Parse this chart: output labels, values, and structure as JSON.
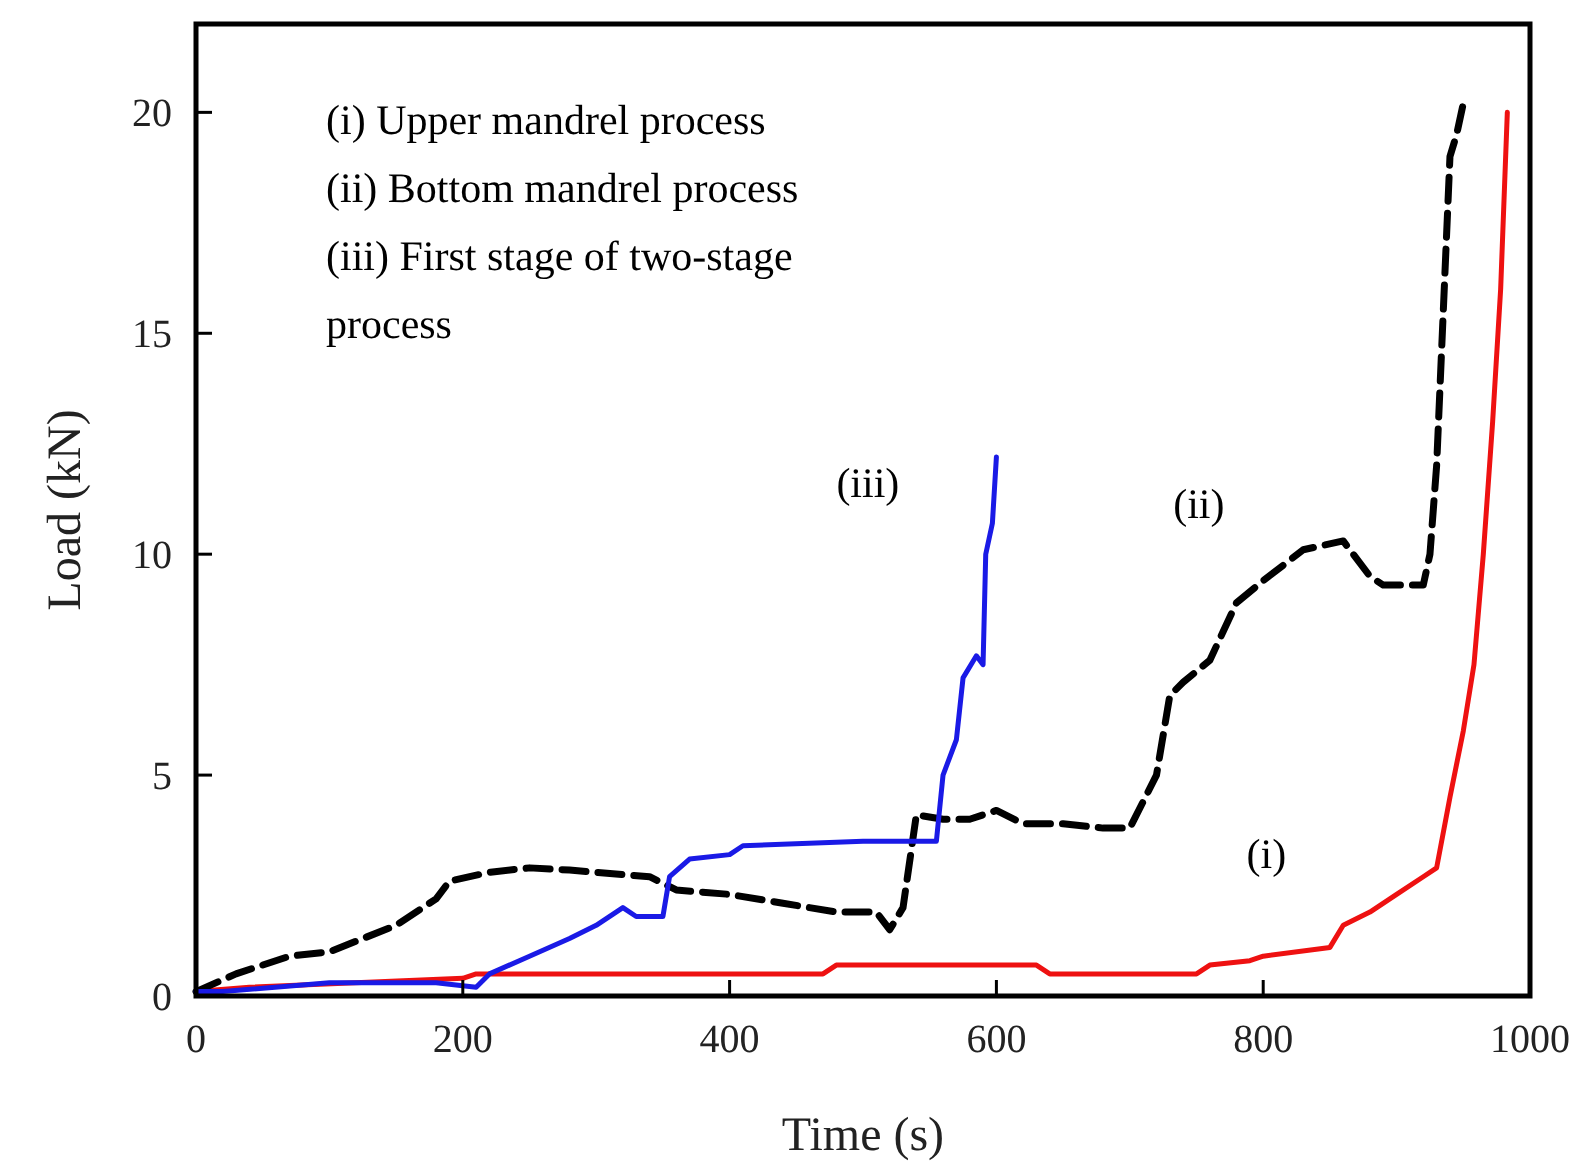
{
  "chart_data": {
    "type": "line",
    "xlabel": "Time (s)",
    "ylabel": "Load (kN)",
    "xlim": [
      0,
      1000
    ],
    "ylim": [
      0,
      22
    ],
    "xticks": [
      0,
      200,
      400,
      600,
      800,
      1000
    ],
    "yticks": [
      0,
      5,
      10,
      15,
      20
    ],
    "grid": false,
    "marker": "none",
    "annotations": [
      "(i) Upper mandrel process",
      "(ii) Bottom mandrel process",
      "(iii) First stage of two-stage process"
    ],
    "series": [
      {
        "name": "(i)",
        "color": "#ee1111",
        "line_style": "solid",
        "x": [
          0,
          40,
          200,
          210,
          470,
          480,
          630,
          640,
          750,
          760,
          790,
          800,
          850,
          860,
          880,
          900,
          920,
          930,
          940,
          950,
          958,
          965,
          972,
          978,
          983
        ],
        "values": [
          0.1,
          0.2,
          0.4,
          0.5,
          0.5,
          0.7,
          0.7,
          0.5,
          0.5,
          0.7,
          0.8,
          0.9,
          1.1,
          1.6,
          1.9,
          2.3,
          2.7,
          2.9,
          4.5,
          6,
          7.5,
          10,
          13,
          16,
          20
        ]
      },
      {
        "name": "(ii)",
        "color": "#000000",
        "line_style": "dashed",
        "x": [
          0,
          30,
          70,
          100,
          150,
          180,
          190,
          220,
          250,
          280,
          300,
          340,
          360,
          400,
          440,
          480,
          510,
          520,
          530,
          540,
          560,
          580,
          600,
          620,
          650,
          680,
          700,
          720,
          730,
          740,
          760,
          780,
          800,
          830,
          860,
          880,
          890,
          920,
          925,
          930,
          940,
          945,
          950
        ],
        "values": [
          0.1,
          0.5,
          0.9,
          1.0,
          1.6,
          2.2,
          2.6,
          2.8,
          2.9,
          2.85,
          2.8,
          2.7,
          2.4,
          2.3,
          2.1,
          1.9,
          1.9,
          1.5,
          2.0,
          4.1,
          4.0,
          4.0,
          4.2,
          3.9,
          3.9,
          3.8,
          3.8,
          5.0,
          6.8,
          7.1,
          7.6,
          8.9,
          9.4,
          10.1,
          10.3,
          9.5,
          9.3,
          9.3,
          10,
          12,
          19,
          19.5,
          20.2
        ]
      },
      {
        "name": "(iii)",
        "color": "#1a1ae6",
        "line_style": "solid",
        "x": [
          0,
          20,
          100,
          180,
          210,
          220,
          250,
          280,
          300,
          320,
          330,
          350,
          355,
          370,
          400,
          410,
          500,
          540,
          555,
          560,
          570,
          575,
          585,
          590,
          592,
          597,
          600
        ],
        "values": [
          0.1,
          0.1,
          0.3,
          0.3,
          0.2,
          0.5,
          0.9,
          1.3,
          1.6,
          2.0,
          1.8,
          1.8,
          2.7,
          3.1,
          3.2,
          3.4,
          3.5,
          3.5,
          3.5,
          5.0,
          5.8,
          7.2,
          7.7,
          7.5,
          10,
          10.7,
          12.2
        ]
      }
    ]
  }
}
